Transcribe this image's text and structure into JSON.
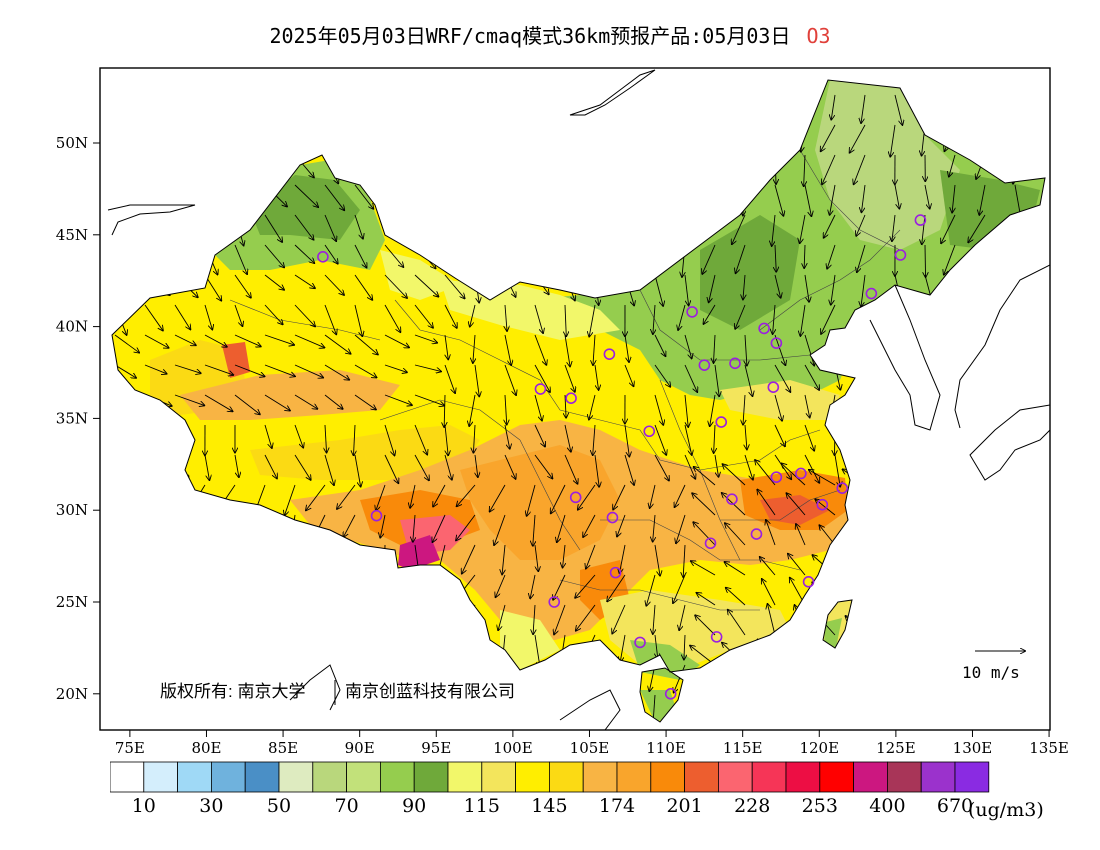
{
  "title": {
    "main": "2025年05月03日WRF/cmaq模式36km预报产品:05月03日",
    "species": "O3"
  },
  "map": {
    "lat_labels": [
      "50N",
      "45N",
      "40N",
      "35N",
      "30N",
      "25N",
      "20N"
    ],
    "lon_labels": [
      "75E",
      "80E",
      "85E",
      "90E",
      "95E",
      "100E",
      "105E",
      "110E",
      "115E",
      "120E",
      "125E",
      "130E",
      "135E"
    ],
    "copyright": "版权所有: 南京大学",
    "copyright2": "南京创蓝科技有限公司",
    "wind_reference": "10 m/s",
    "extent": {
      "lon": [
        73,
        135
      ],
      "lat": [
        18,
        54
      ]
    }
  },
  "colorbar": {
    "colors": [
      "#ffffff",
      "#d4eefc",
      "#9fd9f6",
      "#6fb2dd",
      "#4a8fc6",
      "#deebc0",
      "#b9d77c",
      "#c2e17a",
      "#95cd4e",
      "#6fa93a",
      "#f2f76a",
      "#f3e55c",
      "#ffee00",
      "#fbda14",
      "#f8b444",
      "#f9a52c",
      "#f98a0a",
      "#ed5e2f",
      "#fb6570",
      "#f63557",
      "#ed0e44",
      "#ff0000",
      "#cc1780",
      "#a83558",
      "#9b32cc",
      "#8a2be2"
    ],
    "labels": [
      "10",
      "30",
      "50",
      "70",
      "90",
      "115",
      "145",
      "174",
      "201",
      "228",
      "253",
      "400",
      "670"
    ],
    "unit": "(ug/m3)"
  },
  "stations": [
    [
      87.6,
      43.8
    ],
    [
      91.1,
      29.7
    ],
    [
      101.8,
      36.6
    ],
    [
      103.8,
      36.1
    ],
    [
      106.3,
      38.5
    ],
    [
      104.1,
      30.7
    ],
    [
      106.5,
      29.6
    ],
    [
      102.7,
      25.0
    ],
    [
      106.7,
      26.6
    ],
    [
      108.3,
      22.8
    ],
    [
      110.3,
      20.0
    ],
    [
      113.3,
      23.1
    ],
    [
      112.9,
      28.2
    ],
    [
      115.9,
      28.7
    ],
    [
      119.3,
      26.1
    ],
    [
      114.3,
      30.6
    ],
    [
      117.2,
      31.8
    ],
    [
      118.8,
      32.0
    ],
    [
      120.2,
      30.3
    ],
    [
      121.5,
      31.2
    ],
    [
      113.6,
      34.8
    ],
    [
      108.9,
      34.3
    ],
    [
      112.5,
      37.9
    ],
    [
      114.5,
      38.0
    ],
    [
      117.0,
      36.7
    ],
    [
      117.2,
      39.1
    ],
    [
      116.4,
      39.9
    ],
    [
      111.7,
      40.8
    ],
    [
      123.4,
      41.8
    ],
    [
      125.3,
      43.9
    ],
    [
      126.6,
      45.8
    ]
  ]
}
